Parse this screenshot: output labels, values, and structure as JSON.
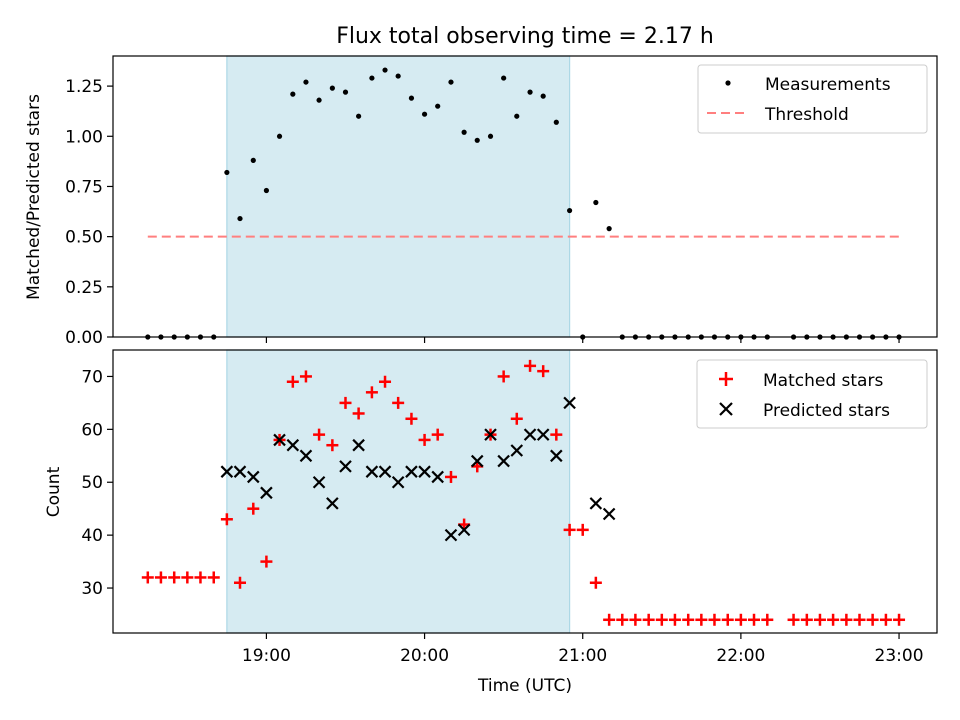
{
  "chart_data": [
    {
      "type": "scatter",
      "title": "Flux total observing time = 2.17 h",
      "xlabel": "",
      "ylabel": "Matched/Predicted stars",
      "xlim_hours": [
        18.03,
        23.24
      ],
      "ylim": [
        0,
        1.4
      ],
      "yticks": [
        {
          "value": 0.0,
          "label": "0.00"
        },
        {
          "value": 0.25,
          "label": "0.25"
        },
        {
          "value": 0.5,
          "label": "0.50"
        },
        {
          "value": 0.75,
          "label": "0.75"
        },
        {
          "value": 1.0,
          "label": "1.00"
        },
        {
          "value": 1.25,
          "label": "1.25"
        }
      ],
      "xticks_hours": [
        19,
        20,
        21,
        22,
        23
      ],
      "highlight_span_hours": [
        18.75,
        20.917
      ],
      "legend": {
        "position": "upper right",
        "entries": [
          "Measurements",
          "Threshold"
        ]
      },
      "series": [
        {
          "name": "Measurements",
          "marker": "dot",
          "color": "#000000",
          "x_hours": [
            18.25,
            18.333,
            18.417,
            18.5,
            18.583,
            18.667,
            18.75,
            18.833,
            18.917,
            19.0,
            19.083,
            19.167,
            19.25,
            19.333,
            19.417,
            19.5,
            19.583,
            19.667,
            19.75,
            19.833,
            19.917,
            20.0,
            20.083,
            20.167,
            20.25,
            20.333,
            20.417,
            20.5,
            20.583,
            20.667,
            20.75,
            20.833,
            20.917,
            21.0,
            21.083,
            21.167,
            21.25,
            21.333,
            21.417,
            21.5,
            21.583,
            21.667,
            21.75,
            21.833,
            21.917,
            22.0,
            22.083,
            22.167,
            22.333,
            22.417,
            22.5,
            22.583,
            22.667,
            22.75,
            22.833,
            22.917,
            23.0
          ],
          "values": [
            0,
            0,
            0,
            0,
            0,
            0,
            0.82,
            0.59,
            0.88,
            0.73,
            1.0,
            1.21,
            1.27,
            1.18,
            1.24,
            1.22,
            1.1,
            1.29,
            1.33,
            1.3,
            1.19,
            1.11,
            1.15,
            1.27,
            1.02,
            0.98,
            1.0,
            1.29,
            1.1,
            1.22,
            1.2,
            1.07,
            0.63,
            0,
            0.67,
            0.54,
            0,
            0,
            0,
            0,
            0,
            0,
            0,
            0,
            0,
            0,
            0,
            0,
            0,
            0,
            0,
            0,
            0,
            0,
            0,
            0,
            0
          ]
        },
        {
          "name": "Threshold",
          "style": "dashed",
          "color": "#ff7f7f",
          "x_hours": [
            18.25,
            23.0
          ],
          "values": [
            0.5,
            0.5
          ]
        }
      ]
    },
    {
      "type": "scatter",
      "title": "",
      "xlabel": "Time (UTC)",
      "ylabel": "Count",
      "xlim_hours": [
        18.03,
        23.24
      ],
      "ylim": [
        21.5,
        75
      ],
      "yticks": [
        {
          "value": 30,
          "label": "30"
        },
        {
          "value": 40,
          "label": "40"
        },
        {
          "value": 50,
          "label": "50"
        },
        {
          "value": 60,
          "label": "60"
        },
        {
          "value": 70,
          "label": "70"
        }
      ],
      "xticks": [
        {
          "hours": 19,
          "label": "19:00"
        },
        {
          "hours": 20,
          "label": "20:00"
        },
        {
          "hours": 21,
          "label": "21:00"
        },
        {
          "hours": 22,
          "label": "22:00"
        },
        {
          "hours": 23,
          "label": "23:00"
        }
      ],
      "highlight_span_hours": [
        18.75,
        20.917
      ],
      "legend": {
        "position": "upper right",
        "entries": [
          "Matched stars",
          "Predicted stars"
        ]
      },
      "series": [
        {
          "name": "Matched stars",
          "marker": "plus",
          "color": "#ff0000",
          "x_hours": [
            18.25,
            18.333,
            18.417,
            18.5,
            18.583,
            18.667,
            18.75,
            18.833,
            18.917,
            19.0,
            19.083,
            19.167,
            19.25,
            19.333,
            19.417,
            19.5,
            19.583,
            19.667,
            19.75,
            19.833,
            19.917,
            20.0,
            20.083,
            20.167,
            20.25,
            20.333,
            20.417,
            20.5,
            20.583,
            20.667,
            20.75,
            20.833,
            20.917,
            21.0,
            21.083,
            21.167,
            21.25,
            21.333,
            21.417,
            21.5,
            21.583,
            21.667,
            21.75,
            21.833,
            21.917,
            22.0,
            22.083,
            22.167,
            22.333,
            22.417,
            22.5,
            22.583,
            22.667,
            22.75,
            22.833,
            22.917,
            23.0
          ],
          "values": [
            32,
            32,
            32,
            32,
            32,
            32,
            43,
            31,
            45,
            35,
            58,
            69,
            70,
            59,
            57,
            65,
            63,
            67,
            69,
            65,
            62,
            58,
            59,
            51,
            42,
            53,
            59,
            70,
            62,
            72,
            71,
            59,
            41,
            41,
            31,
            24,
            24,
            24,
            24,
            24,
            24,
            24,
            24,
            24,
            24,
            24,
            24,
            24,
            24,
            24,
            24,
            24,
            24,
            24,
            24,
            24,
            24
          ]
        },
        {
          "name": "Predicted stars",
          "marker": "x",
          "color": "#000000",
          "x_hours": [
            18.75,
            18.833,
            18.917,
            19.0,
            19.083,
            19.167,
            19.25,
            19.333,
            19.417,
            19.5,
            19.583,
            19.667,
            19.75,
            19.833,
            19.917,
            20.0,
            20.083,
            20.167,
            20.25,
            20.333,
            20.417,
            20.5,
            20.583,
            20.667,
            20.75,
            20.833,
            20.917,
            21.083,
            21.167
          ],
          "values": [
            52,
            52,
            51,
            48,
            58,
            57,
            55,
            50,
            46,
            53,
            57,
            52,
            52,
            50,
            52,
            52,
            51,
            40,
            41,
            54,
            59,
            54,
            56,
            59,
            59,
            55,
            65,
            46,
            44
          ]
        }
      ]
    }
  ]
}
